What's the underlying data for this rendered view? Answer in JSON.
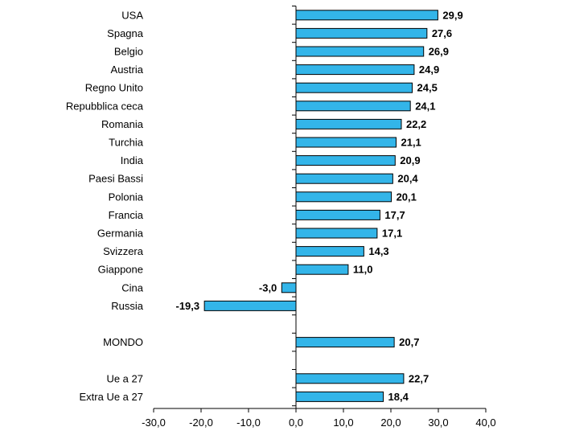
{
  "colors": {
    "bar": "#33b5e9",
    "bar_stroke": "#000000",
    "axis": "#000000"
  },
  "chart_data": {
    "type": "bar",
    "orientation": "horizontal",
    "title": "",
    "xlabel": "",
    "ylabel": "",
    "xlim": [
      -30,
      40
    ],
    "ticks": [
      {
        "value": -30,
        "label": "-30,0"
      },
      {
        "value": -20,
        "label": "-20,0"
      },
      {
        "value": -10,
        "label": "-10,0"
      },
      {
        "value": 0,
        "label": "0,0"
      },
      {
        "value": 10,
        "label": "10,0"
      },
      {
        "value": 20,
        "label": "20,0"
      },
      {
        "value": 30,
        "label": "30,0"
      },
      {
        "value": 40,
        "label": "40,0"
      }
    ],
    "grid": false,
    "categories": [
      "USA",
      "Spagna",
      "Belgio",
      "Austria",
      "Regno Unito",
      "Repubblica ceca",
      "Romania",
      "Turchia",
      "India",
      "Paesi Bassi",
      "Polonia",
      "Francia",
      "Germania",
      "Svizzera",
      "Giappone",
      "Cina",
      "Russia",
      "",
      "MONDO",
      "",
      "Ue a 27",
      "Extra Ue a 27"
    ],
    "values": [
      29.9,
      27.6,
      26.9,
      24.9,
      24.5,
      24.1,
      22.2,
      21.1,
      20.9,
      20.4,
      20.1,
      17.7,
      17.1,
      14.3,
      11.0,
      -3.0,
      -19.3,
      null,
      20.7,
      null,
      22.7,
      18.4
    ],
    "value_labels": [
      "29,9",
      "27,6",
      "26,9",
      "24,9",
      "24,5",
      "24,1",
      "22,2",
      "21,1",
      "20,9",
      "20,4",
      "20,1",
      "17,7",
      "17,1",
      "14,3",
      "11,0",
      "-3,0",
      "-19,3",
      "",
      "20,7",
      "",
      "22,7",
      "18,4"
    ]
  }
}
